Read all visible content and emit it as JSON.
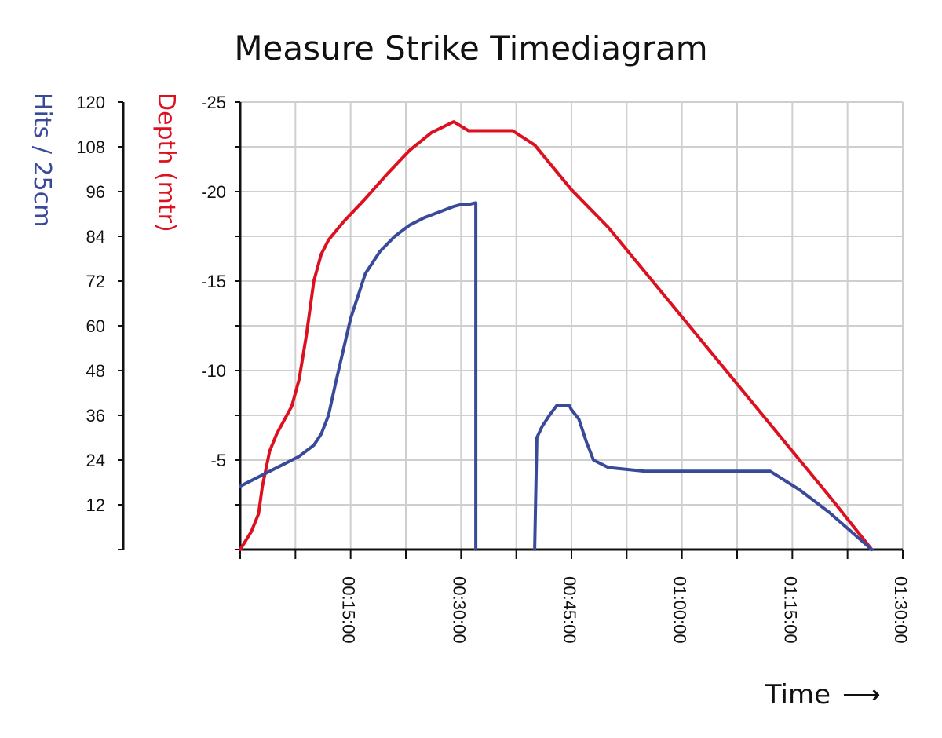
{
  "chart_data": {
    "type": "line",
    "title": "Measure Strike Timediagram",
    "xlabel": "Time",
    "xlabel_arrow": "⟶",
    "hits_axis": {
      "label": "Hits / 25cm",
      "range": [
        0,
        120
      ],
      "ticks": [
        "12",
        "24",
        "36",
        "48",
        "60",
        "72",
        "84",
        "96",
        "108",
        "120"
      ],
      "color": "#3a4a9a"
    },
    "depth_axis": {
      "label": "Depth  (mtr)",
      "range": [
        0,
        -25
      ],
      "ticks": [
        "-5",
        "-10",
        "-15",
        "-20",
        "-25"
      ],
      "color": "#dd1020"
    },
    "x_axis": {
      "unit": "minutes",
      "range": [
        0,
        90
      ],
      "tick_labels": [
        "00:15:00",
        "00:30:00",
        "00:45:00",
        "01:00:00",
        "01:15:00",
        "01:30:00"
      ],
      "tick_values": [
        15,
        30,
        45,
        60,
        75,
        90
      ]
    },
    "grid": true,
    "series": [
      {
        "axis": "depth",
        "color": "#dd1020",
        "x": [
          0,
          1.5,
          2.5,
          3,
          4,
          5,
          7,
          8,
          9,
          10,
          11,
          12,
          14,
          17,
          20,
          23,
          26,
          29,
          31,
          33,
          35,
          37,
          40,
          45,
          50,
          60,
          70,
          80,
          85.8
        ],
        "y": [
          0,
          -1,
          -2,
          -3.5,
          -5.5,
          -6.5,
          -8,
          -9.5,
          -12,
          -15,
          -16.5,
          -17.3,
          -18.3,
          -19.6,
          -21,
          -22.3,
          -23.3,
          -23.9,
          -23.4,
          -23.4,
          -23.4,
          -23.4,
          -22.6,
          -20.1,
          -18,
          -13,
          -8,
          -3,
          0
        ]
      },
      {
        "axis": "hits",
        "color": "#3a4a9a",
        "x": [
          0,
          2,
          4,
          6,
          8,
          10,
          11,
          12,
          13,
          15,
          17,
          19,
          21,
          23,
          25,
          27,
          29,
          30,
          31,
          32,
          32
        ],
        "y": [
          17,
          19,
          21,
          23,
          25,
          28,
          31,
          36,
          45,
          62,
          74,
          80,
          84,
          87,
          89,
          90.5,
          92,
          92.5,
          92.5,
          93,
          0
        ],
        "segment": 1
      },
      {
        "axis": "hits",
        "color": "#3a4a9a",
        "x": [
          40,
          40.3,
          41,
          42,
          43,
          43.5,
          44,
          44.7,
          45,
          46,
          47,
          48,
          50,
          55,
          60,
          65,
          70,
          72,
          76,
          80,
          85.8
        ],
        "y": [
          0,
          30,
          33,
          36,
          38.6,
          38.6,
          38.6,
          38.6,
          37.5,
          35,
          29,
          24,
          22,
          21,
          21,
          21,
          21,
          21,
          16,
          10,
          0
        ],
        "segment": 2
      }
    ]
  }
}
